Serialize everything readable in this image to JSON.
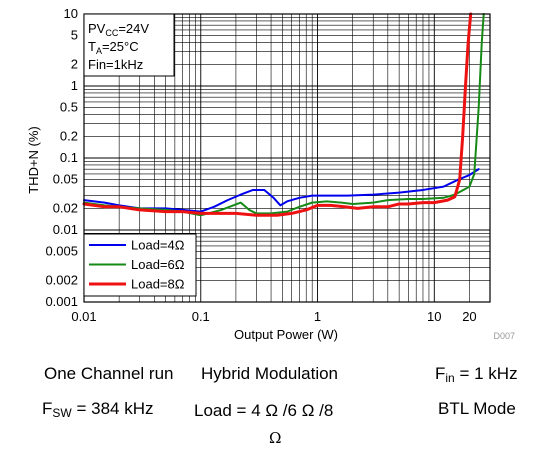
{
  "chart_data": {
    "type": "line",
    "title": "",
    "xlabel": "Output Power (W)",
    "ylabel": "THD+N (%)",
    "xscale": "log",
    "yscale": "log",
    "xlim": [
      0.01,
      30
    ],
    "ylim": [
      0.001,
      10
    ],
    "grid": true,
    "x_ticks": [
      "0.01",
      "0.1",
      "1",
      "10",
      "20"
    ],
    "y_ticks": [
      "0.001",
      "0.002",
      "0.005",
      "0.01",
      "0.02",
      "0.05",
      "0.1",
      "0.2",
      "0.5",
      "1",
      "2",
      "5",
      "10"
    ],
    "conditions": [
      "PVCC=24V",
      "TA=25°C",
      "Fin=1kHz"
    ],
    "legend_position": "bottom-left",
    "figure_id": "D007",
    "series": [
      {
        "name": "Load=4Ω",
        "color": "#0000ee",
        "x": [
          0.01,
          0.015,
          0.02,
          0.03,
          0.05,
          0.07,
          0.1,
          0.13,
          0.17,
          0.22,
          0.28,
          0.35,
          0.42,
          0.48,
          0.55,
          0.7,
          0.9,
          1.2,
          1.8,
          3,
          5,
          8,
          12,
          16,
          20,
          24
        ],
        "y": [
          0.026,
          0.024,
          0.022,
          0.02,
          0.02,
          0.019,
          0.018,
          0.021,
          0.026,
          0.031,
          0.036,
          0.036,
          0.028,
          0.022,
          0.025,
          0.028,
          0.03,
          0.03,
          0.03,
          0.031,
          0.033,
          0.036,
          0.04,
          0.05,
          0.058,
          0.07
        ]
      },
      {
        "name": "Load=6Ω",
        "color": "#168a16",
        "x": [
          0.01,
          0.015,
          0.02,
          0.03,
          0.05,
          0.07,
          0.1,
          0.15,
          0.22,
          0.26,
          0.3,
          0.4,
          0.55,
          0.7,
          0.9,
          1.2,
          1.6,
          2,
          3,
          4,
          6,
          8,
          12,
          15,
          20,
          22,
          24,
          25.5,
          26.5
        ],
        "y": [
          0.024,
          0.022,
          0.021,
          0.02,
          0.019,
          0.018,
          0.016,
          0.019,
          0.024,
          0.019,
          0.017,
          0.017,
          0.018,
          0.021,
          0.024,
          0.025,
          0.024,
          0.023,
          0.024,
          0.026,
          0.027,
          0.027,
          0.028,
          0.031,
          0.04,
          0.06,
          0.5,
          4,
          10
        ]
      },
      {
        "name": "Load=8Ω",
        "color": "#ee1111",
        "x": [
          0.01,
          0.015,
          0.02,
          0.03,
          0.05,
          0.07,
          0.1,
          0.15,
          0.2,
          0.3,
          0.45,
          0.6,
          0.8,
          1,
          1.3,
          1.7,
          2.2,
          3,
          4,
          5,
          6,
          8,
          10,
          13,
          15,
          16.5,
          17.5,
          18.5,
          19.5,
          20.5
        ],
        "y": [
          0.023,
          0.021,
          0.021,
          0.019,
          0.018,
          0.018,
          0.017,
          0.017,
          0.017,
          0.016,
          0.016,
          0.017,
          0.019,
          0.022,
          0.022,
          0.021,
          0.02,
          0.021,
          0.021,
          0.023,
          0.023,
          0.024,
          0.024,
          0.026,
          0.029,
          0.05,
          0.2,
          1,
          4,
          10
        ]
      }
    ]
  },
  "captions": {
    "line1_channel": "One Channel run",
    "line1_modulation": "Hybrid Modulation",
    "fin_symbol": "F",
    "fin_sub": "in",
    "fin_value": " = 1 kHz",
    "fsw_symbol": "F",
    "fsw_sub": "SW",
    "fsw_value": " = 384 kHz",
    "load_text": "Load = 4 Ω /6 Ω /8",
    "mode": "BTL Mode",
    "ohm_orphan": "Ω"
  }
}
